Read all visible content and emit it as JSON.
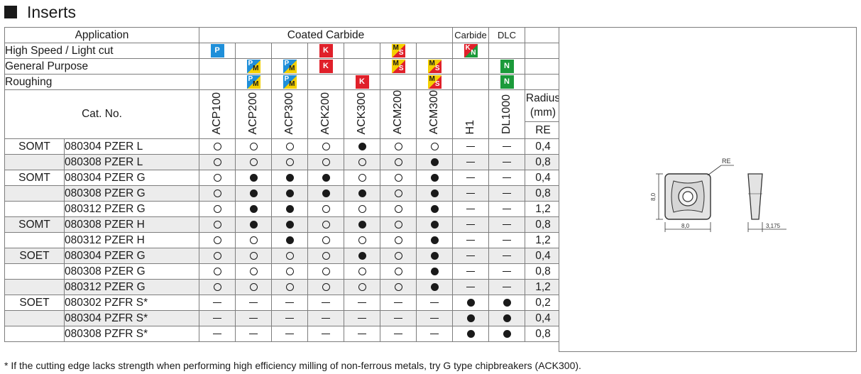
{
  "title": "Inserts",
  "header": {
    "application": "Application",
    "coated_carbide": "Coated Carbide",
    "carbide": "Carbide",
    "dlc": "DLC",
    "cat_no": "Cat. No.",
    "radius": "Radius (mm)",
    "re": "RE"
  },
  "grades": [
    "ACP100",
    "ACP200",
    "ACP300",
    "ACK200",
    "ACK300",
    "ACM200",
    "ACM300",
    "H1",
    "DL1000"
  ],
  "applications": [
    {
      "label": "High Speed / Light cut",
      "badges": [
        "P",
        "",
        "",
        "K",
        "",
        "MS",
        "",
        "KN",
        ""
      ]
    },
    {
      "label": "General Purpose",
      "badges": [
        "",
        "PM",
        "PM",
        "K",
        "",
        "MS",
        "MS",
        "",
        "N"
      ]
    },
    {
      "label": "Roughing",
      "badges": [
        "",
        "PM",
        "PM",
        "",
        "K",
        "",
        "MS",
        "",
        "N"
      ]
    }
  ],
  "legend": {
    "open": "open-circle",
    "full": "filled-circle",
    "none": "dash"
  },
  "rows": [
    {
      "series": "SOMT",
      "code": "080304 PZER L",
      "marks": [
        "o",
        "o",
        "o",
        "o",
        "f",
        "o",
        "o",
        "-",
        "-"
      ],
      "re": "0,4"
    },
    {
      "series": "",
      "code": "080308 PZER L",
      "marks": [
        "o",
        "o",
        "o",
        "o",
        "o",
        "o",
        "f",
        "-",
        "-"
      ],
      "re": "0,8"
    },
    {
      "series": "SOMT",
      "code": "080304 PZER G",
      "marks": [
        "o",
        "f",
        "f",
        "f",
        "o",
        "o",
        "f",
        "-",
        "-"
      ],
      "re": "0,4"
    },
    {
      "series": "",
      "code": "080308 PZER G",
      "marks": [
        "o",
        "f",
        "f",
        "f",
        "f",
        "o",
        "f",
        "-",
        "-"
      ],
      "re": "0,8"
    },
    {
      "series": "",
      "code": "080312 PZER G",
      "marks": [
        "o",
        "f",
        "f",
        "o",
        "o",
        "o",
        "f",
        "-",
        "-"
      ],
      "re": "1,2"
    },
    {
      "series": "SOMT",
      "code": "080308 PZER H",
      "marks": [
        "o",
        "f",
        "f",
        "o",
        "f",
        "o",
        "f",
        "-",
        "-"
      ],
      "re": "0,8"
    },
    {
      "series": "",
      "code": "080312 PZER H",
      "marks": [
        "o",
        "o",
        "f",
        "o",
        "o",
        "o",
        "f",
        "-",
        "-"
      ],
      "re": "1,2"
    },
    {
      "series": "SOET",
      "code": "080304 PZER G",
      "marks": [
        "o",
        "o",
        "o",
        "o",
        "f",
        "o",
        "f",
        "-",
        "-"
      ],
      "re": "0,4"
    },
    {
      "series": "",
      "code": "080308 PZER G",
      "marks": [
        "o",
        "o",
        "o",
        "o",
        "o",
        "o",
        "f",
        "-",
        "-"
      ],
      "re": "0,8"
    },
    {
      "series": "",
      "code": "080312 PZER G",
      "marks": [
        "o",
        "o",
        "o",
        "o",
        "o",
        "o",
        "f",
        "-",
        "-"
      ],
      "re": "1,2"
    },
    {
      "series": "SOET",
      "code": "080302 PZFR S*",
      "marks": [
        "-",
        "-",
        "-",
        "-",
        "-",
        "-",
        "-",
        "f",
        "f"
      ],
      "re": "0,2"
    },
    {
      "series": "",
      "code": "080304 PZFR S*",
      "marks": [
        "-",
        "-",
        "-",
        "-",
        "-",
        "-",
        "-",
        "f",
        "f"
      ],
      "re": "0,4"
    },
    {
      "series": "",
      "code": "080308 PZFR S*",
      "marks": [
        "-",
        "-",
        "-",
        "-",
        "-",
        "-",
        "-",
        "f",
        "f"
      ],
      "re": "0,8"
    }
  ],
  "drawing": {
    "re_label": "RE",
    "width_label": "8,0",
    "height_label": "8,0",
    "thickness_label": "3,175"
  },
  "footnote": "* If the cutting edge lacks strength when performing high efficiency milling of non-ferrous metals, try G type chipbreakers (ACK300).",
  "colors": {
    "p": "#1f8fd9",
    "m": "#f4d000",
    "k": "#e0202a",
    "n": "#1b9a3a"
  }
}
